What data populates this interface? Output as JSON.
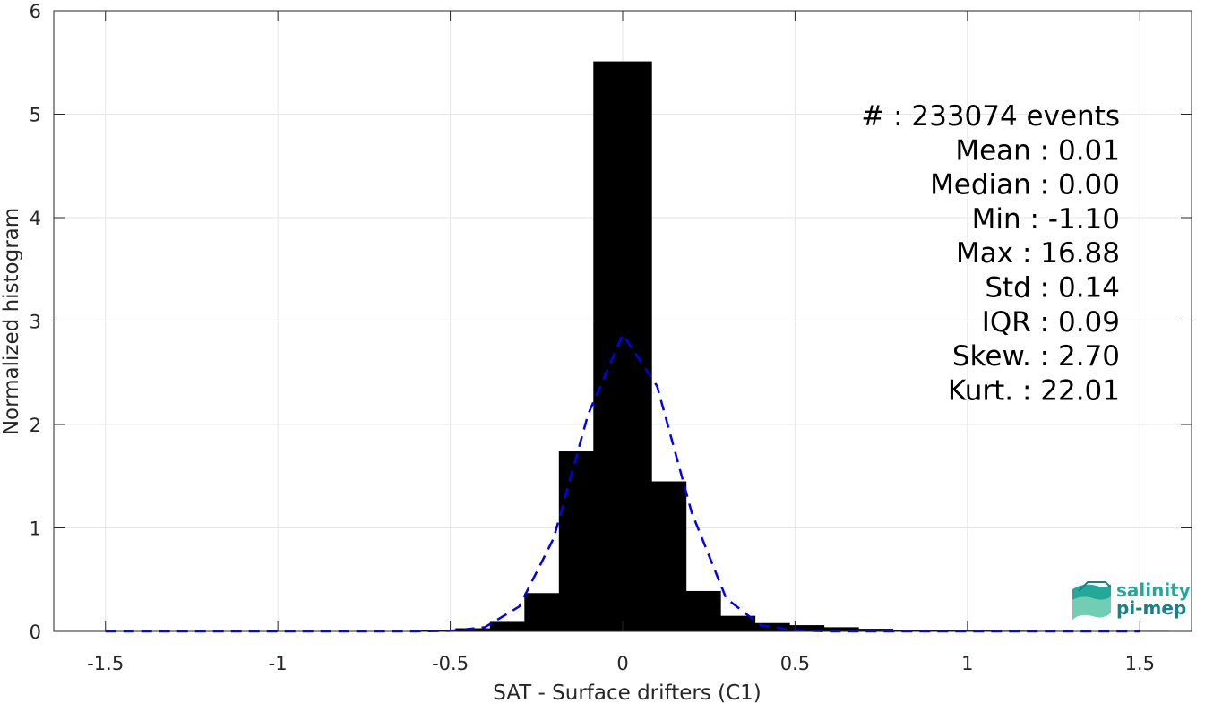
{
  "chart_data": {
    "type": "bar",
    "xlabel": "SAT - Surface drifters (C1)",
    "ylabel": "Normalized histogram",
    "xlim": [
      -1.65,
      1.65
    ],
    "ylim": [
      0,
      6
    ],
    "xticks": [
      -1.5,
      -1,
      -0.5,
      0,
      0.5,
      1,
      1.5
    ],
    "xtick_labels": [
      "-1.5",
      "-1",
      "-0.5",
      "0",
      "0.5",
      "1",
      "1.5"
    ],
    "yticks": [
      0,
      1,
      2,
      3,
      4,
      5,
      6
    ],
    "ytick_labels": [
      "0",
      "1",
      "2",
      "3",
      "4",
      "5",
      "6"
    ],
    "grid": true,
    "bar_color": "#000000",
    "bars": {
      "x": [
        -0.5,
        -0.4,
        -0.3,
        -0.2,
        -0.1,
        0.0,
        0.1,
        0.2,
        0.3,
        0.4,
        0.5,
        0.6,
        0.7,
        0.8,
        0.9,
        1.0,
        1.1,
        1.2,
        1.3,
        1.4,
        1.5
      ],
      "values": [
        0.01,
        0.03,
        0.1,
        0.37,
        1.74,
        5.51,
        1.45,
        0.39,
        0.15,
        0.08,
        0.06,
        0.04,
        0.025,
        0.015,
        0.01,
        0.008,
        0.006,
        0.005,
        0.004,
        0.003,
        0.005
      ]
    },
    "fit_curve": {
      "style": "dashed",
      "color": "#0000ee",
      "x": [
        -1.5,
        -1.4,
        -1.3,
        -1.2,
        -1.1,
        -1.0,
        -0.9,
        -0.8,
        -0.7,
        -0.6,
        -0.5,
        -0.4,
        -0.3,
        -0.2,
        -0.1,
        0.0,
        0.1,
        0.2,
        0.3,
        0.4,
        0.5,
        0.6,
        0.7,
        0.8,
        0.9,
        1.0,
        1.1,
        1.2,
        1.3,
        1.4,
        1.5
      ],
      "y": [
        0,
        0,
        0,
        0,
        0,
        0,
        0,
        0,
        0,
        0,
        0.005,
        0.04,
        0.24,
        0.9,
        2.1,
        2.87,
        2.37,
        1.15,
        0.32,
        0.06,
        0.01,
        0,
        0,
        0,
        0,
        0,
        0,
        0,
        0,
        0,
        0
      ]
    },
    "annotations": [
      "#  : 233074 events",
      "Mean : 0.01",
      "Median : 0.00",
      "Min : -1.10",
      "Max : 16.88",
      "Std : 0.14",
      "IQR : 0.09",
      "Skew. : 2.70",
      "Kurt. : 22.01"
    ]
  },
  "logo": {
    "line1": "salinity",
    "line2": "pi-mep",
    "colors": [
      "#23a89a",
      "#1b7f86",
      "#7fd3b8"
    ]
  }
}
